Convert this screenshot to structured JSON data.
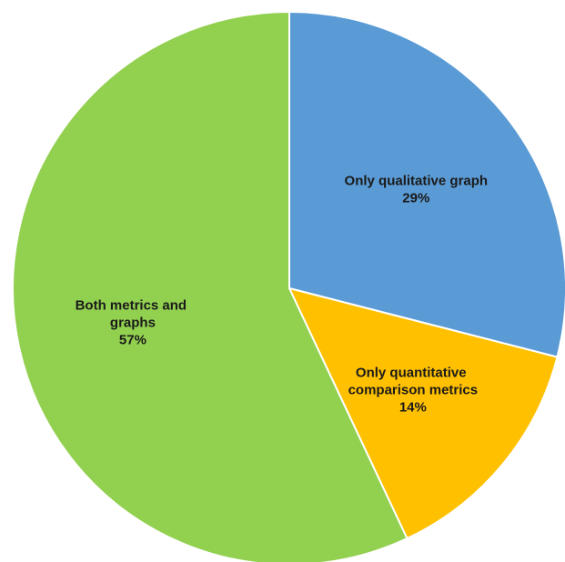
{
  "chart_data": {
    "type": "pie",
    "categories": [
      "Only qualitative graph",
      "Only quantitative comparison metrics",
      "Both metrics and graphs"
    ],
    "values": [
      29,
      14,
      57
    ],
    "value_labels": [
      "29%",
      "14%",
      "57%"
    ],
    "colors": [
      "#5b9bd5",
      "#ffc000",
      "#92d050"
    ]
  }
}
